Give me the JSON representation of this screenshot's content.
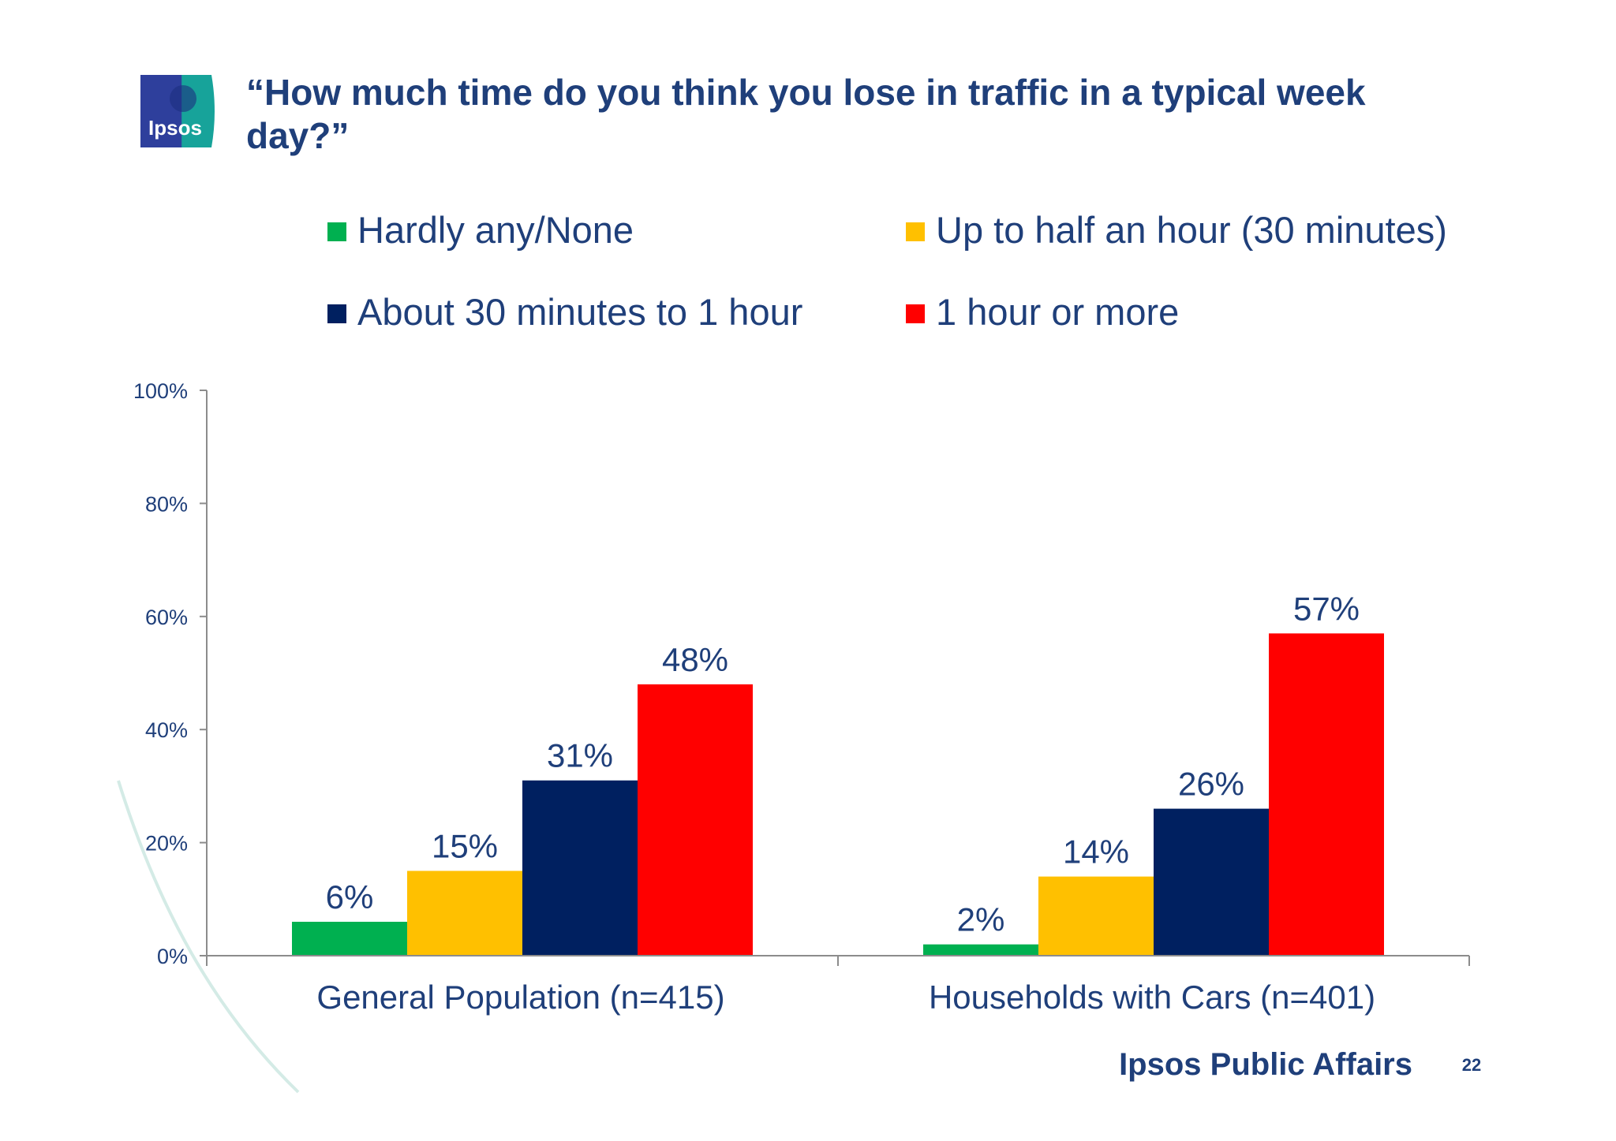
{
  "logo": {
    "text": "Ipsos"
  },
  "chart_data": {
    "type": "bar",
    "title": "“How much time do you think you lose in traffic in a typical week day?”",
    "categories": [
      "General Population (n=415)",
      "Households with Cars (n=401)"
    ],
    "series": [
      {
        "name": "Hardly any/None",
        "values": [
          6,
          2
        ],
        "labels": [
          "6%",
          "2%"
        ],
        "color": "#00b050"
      },
      {
        "name": "Up to half an hour (30 minutes)",
        "values": [
          15,
          14
        ],
        "labels": [
          "15%",
          "14%"
        ],
        "color": "#ffc000"
      },
      {
        "name": "About 30 minutes to 1 hour",
        "values": [
          31,
          26
        ],
        "labels": [
          "31%",
          "26%"
        ],
        "color": "#002060"
      },
      {
        "name": "1 hour or more",
        "values": [
          48,
          57
        ],
        "labels": [
          "48%",
          "57%"
        ],
        "color": "#ff0000"
      }
    ],
    "yticks": [
      "0%",
      "20%",
      "40%",
      "60%",
      "80%",
      "100%"
    ],
    "ylim": [
      0,
      100
    ],
    "xlabel": "",
    "ylabel": "",
    "legend": "top",
    "grid": false
  },
  "footer": {
    "brand": "Ipsos Public Affairs",
    "page": "22"
  }
}
